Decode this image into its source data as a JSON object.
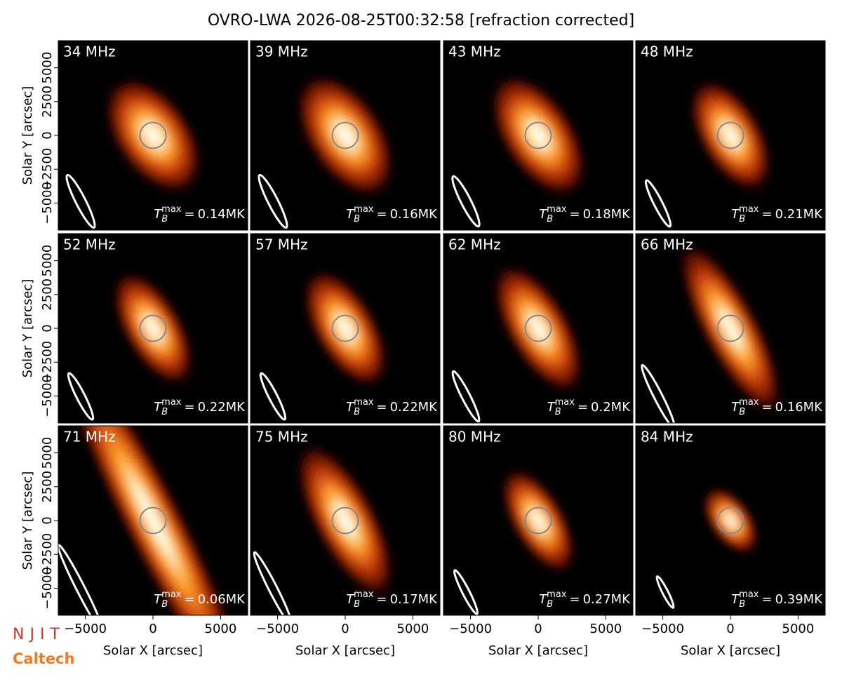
{
  "chart_data": {
    "type": "image_grid",
    "title": "OVRO-LWA 2026-08-25T00:32:58 [refraction corrected]",
    "xlabel": "Solar X [arcsec]",
    "ylabel": "Solar Y [arcsec]",
    "xlim": [
      -7000,
      7000
    ],
    "ylim": [
      -7000,
      7000
    ],
    "xticks": [
      {
        "value": -5000,
        "label": "−5000"
      },
      0,
      5000
    ],
    "yticks": [
      {
        "value": -5000,
        "label": "−5000"
      },
      {
        "value": -2500,
        "label": "−2500"
      },
      0,
      2500,
      5000
    ],
    "tb_symbol": "T",
    "tb_sub": "B",
    "tb_sup": "max",
    "tb_eq": "=",
    "panels": [
      {
        "label": "34 MHz",
        "tb_max": 0.14,
        "tb_max_label": "0.14MK"
      },
      {
        "label": "39 MHz",
        "tb_max": 0.16,
        "tb_max_label": "0.16MK"
      },
      {
        "label": "43 MHz",
        "tb_max": 0.18,
        "tb_max_label": "0.18MK"
      },
      {
        "label": "48 MHz",
        "tb_max": 0.21,
        "tb_max_label": "0.21MK"
      },
      {
        "label": "52 MHz",
        "tb_max": 0.22,
        "tb_max_label": "0.22MK"
      },
      {
        "label": "57 MHz",
        "tb_max": 0.22,
        "tb_max_label": "0.22MK"
      },
      {
        "label": "62 MHz",
        "tb_max": 0.2,
        "tb_max_label": "0.2MK"
      },
      {
        "label": "66 MHz",
        "tb_max": 0.16,
        "tb_max_label": "0.16MK"
      },
      {
        "label": "71 MHz",
        "tb_max": 0.06,
        "tb_max_label": "0.06MK"
      },
      {
        "label": "75 MHz",
        "tb_max": 0.17,
        "tb_max_label": "0.17MK"
      },
      {
        "label": "80 MHz",
        "tb_max": 0.27,
        "tb_max_label": "0.27MK"
      },
      {
        "label": "84 MHz",
        "tb_max": 0.39,
        "tb_max_label": "0.39MK"
      }
    ]
  },
  "logos": [
    "NJIT",
    "Caltech"
  ]
}
